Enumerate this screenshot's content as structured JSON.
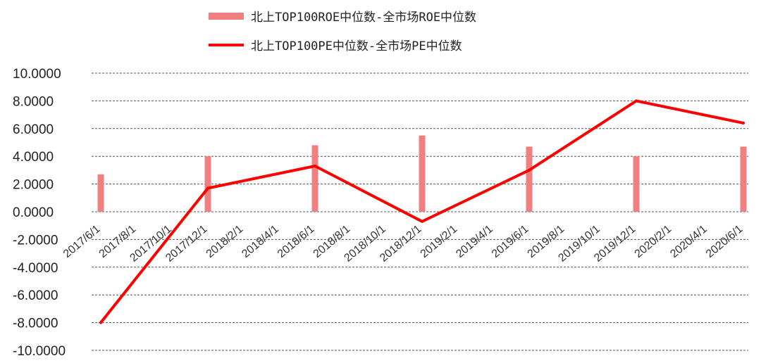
{
  "chart_data": {
    "type": "bar+line",
    "title": "",
    "xlabel": "",
    "ylabel": "",
    "ylim": [
      -10,
      10
    ],
    "y_ticks": [
      "10.0000",
      "8.0000",
      "6.0000",
      "4.0000",
      "2.0000",
      "0.0000",
      "-2.0000",
      "-4.0000",
      "-6.0000",
      "-8.0000",
      "-10.0000"
    ],
    "categories": [
      "2017/6/1",
      "2017/8/1",
      "2017/10/1",
      "2017/12/1",
      "2018/2/1",
      "2018/4/1",
      "2018/6/1",
      "2018/8/1",
      "2018/10/1",
      "2018/12/1",
      "2019/2/1",
      "2019/4/1",
      "2019/6/1",
      "2019/8/1",
      "2019/10/1",
      "2019/12/1",
      "2020/2/1",
      "2020/4/1",
      "2020/6/1"
    ],
    "grid": true,
    "legend_position": "top",
    "series": [
      {
        "name": "北上TOP100ROE中位数-全市场ROE中位数",
        "type": "bar",
        "color": "#f08080",
        "points": [
          {
            "x": "2017/6/1",
            "y": 2.7
          },
          {
            "x": "2017/12/1",
            "y": 4.0
          },
          {
            "x": "2018/6/1",
            "y": 4.8
          },
          {
            "x": "2018/12/1",
            "y": 5.5
          },
          {
            "x": "2019/6/1",
            "y": 4.7
          },
          {
            "x": "2019/12/1",
            "y": 4.0
          },
          {
            "x": "2020/6/1",
            "y": 4.7
          }
        ]
      },
      {
        "name": "北上TOP100PE中位数-全市场PE中位数",
        "type": "line",
        "color": "#ff0000",
        "points": [
          {
            "x": "2017/6/1",
            "y": -8.0
          },
          {
            "x": "2017/12/1",
            "y": 1.7
          },
          {
            "x": "2018/6/1",
            "y": 3.3
          },
          {
            "x": "2018/12/1",
            "y": -0.7
          },
          {
            "x": "2019/6/1",
            "y": 3.0
          },
          {
            "x": "2019/12/1",
            "y": 8.0
          },
          {
            "x": "2020/6/1",
            "y": 6.4
          }
        ]
      }
    ]
  }
}
